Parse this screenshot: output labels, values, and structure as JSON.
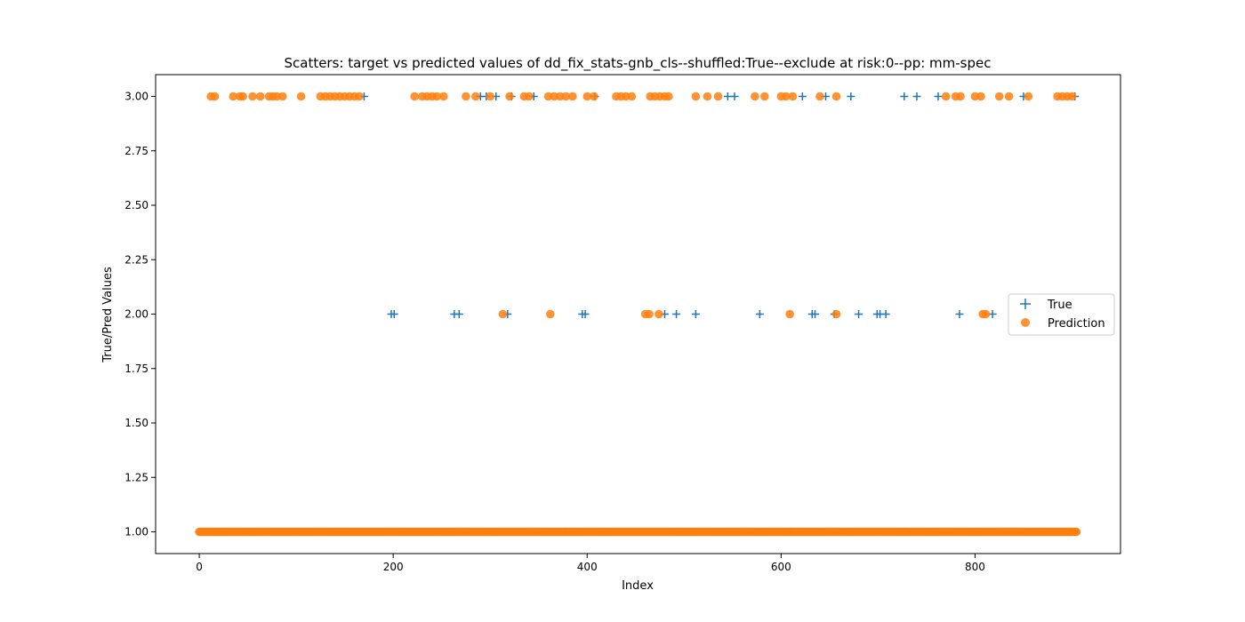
{
  "chart_data": {
    "type": "scatter",
    "title": "Scatters: target vs predicted values of dd_fix_stats-gnb_cls--shuffled:True--exclude at risk:0--pp: mm-spec",
    "xlabel": "Index",
    "ylabel": "True/Pred Values",
    "xlim": [
      -45,
      950
    ],
    "ylim": [
      0.9,
      3.1
    ],
    "xticks": [
      0,
      200,
      400,
      600,
      800
    ],
    "yticks": [
      1.0,
      1.25,
      1.5,
      1.75,
      2.0,
      2.25,
      2.5,
      2.75,
      3.0
    ],
    "xtick_labels": [
      "0",
      "200",
      "400",
      "600",
      "800"
    ],
    "ytick_labels": [
      "1.00",
      "1.25",
      "1.50",
      "1.75",
      "2.00",
      "2.25",
      "2.50",
      "2.75",
      "3.00"
    ],
    "grid": false,
    "legend_position": "center-right",
    "series": [
      {
        "name": "True",
        "marker": "plus",
        "color": "#1f77b4",
        "points": [
          [
            170,
            3
          ],
          [
            290,
            3
          ],
          [
            296,
            3
          ],
          [
            306,
            3
          ],
          [
            322,
            3
          ],
          [
            345,
            3
          ],
          [
            408,
            3
          ],
          [
            545,
            3
          ],
          [
            552,
            3
          ],
          [
            622,
            3
          ],
          [
            646,
            3
          ],
          [
            672,
            3
          ],
          [
            727,
            3
          ],
          [
            740,
            3
          ],
          [
            762,
            3
          ],
          [
            850,
            3
          ],
          [
            903,
            3
          ],
          [
            198,
            2
          ],
          [
            201,
            2
          ],
          [
            263,
            2
          ],
          [
            268,
            2
          ],
          [
            318,
            2
          ],
          [
            395,
            2
          ],
          [
            398,
            2
          ],
          [
            480,
            2
          ],
          [
            492,
            2
          ],
          [
            512,
            2
          ],
          [
            578,
            2
          ],
          [
            632,
            2
          ],
          [
            635,
            2
          ],
          [
            655,
            2
          ],
          [
            680,
            2
          ],
          [
            699,
            2
          ],
          [
            702,
            2
          ],
          [
            708,
            2
          ],
          [
            784,
            2
          ],
          [
            818,
            2
          ]
        ],
        "baseline": {
          "x_start": 0,
          "x_end": 905,
          "y": 1
        }
      },
      {
        "name": "Prediction",
        "marker": "circle",
        "color": "#ff7f0e",
        "points": [
          [
            12,
            3
          ],
          [
            16,
            3
          ],
          [
            35,
            3
          ],
          [
            42,
            3
          ],
          [
            45,
            3
          ],
          [
            55,
            3
          ],
          [
            63,
            3
          ],
          [
            72,
            3
          ],
          [
            76,
            3
          ],
          [
            80,
            3
          ],
          [
            86,
            3
          ],
          [
            105,
            3
          ],
          [
            125,
            3
          ],
          [
            130,
            3
          ],
          [
            135,
            3
          ],
          [
            140,
            3
          ],
          [
            145,
            3
          ],
          [
            150,
            3
          ],
          [
            155,
            3
          ],
          [
            160,
            3
          ],
          [
            165,
            3
          ],
          [
            222,
            3
          ],
          [
            230,
            3
          ],
          [
            235,
            3
          ],
          [
            240,
            3
          ],
          [
            245,
            3
          ],
          [
            252,
            3
          ],
          [
            275,
            3
          ],
          [
            285,
            3
          ],
          [
            300,
            3
          ],
          [
            320,
            3
          ],
          [
            335,
            3
          ],
          [
            340,
            3
          ],
          [
            360,
            3
          ],
          [
            366,
            3
          ],
          [
            372,
            3
          ],
          [
            378,
            3
          ],
          [
            385,
            3
          ],
          [
            400,
            3
          ],
          [
            407,
            3
          ],
          [
            430,
            3
          ],
          [
            435,
            3
          ],
          [
            440,
            3
          ],
          [
            446,
            3
          ],
          [
            465,
            3
          ],
          [
            470,
            3
          ],
          [
            475,
            3
          ],
          [
            480,
            3
          ],
          [
            484,
            3
          ],
          [
            512,
            3
          ],
          [
            524,
            3
          ],
          [
            535,
            3
          ],
          [
            573,
            3
          ],
          [
            583,
            3
          ],
          [
            600,
            3
          ],
          [
            605,
            3
          ],
          [
            612,
            3
          ],
          [
            640,
            3
          ],
          [
            657,
            3
          ],
          [
            770,
            3
          ],
          [
            780,
            3
          ],
          [
            785,
            3
          ],
          [
            800,
            3
          ],
          [
            806,
            3
          ],
          [
            825,
            3
          ],
          [
            835,
            3
          ],
          [
            855,
            3
          ],
          [
            885,
            3
          ],
          [
            890,
            3
          ],
          [
            895,
            3
          ],
          [
            900,
            3
          ],
          [
            313,
            2
          ],
          [
            362,
            2
          ],
          [
            460,
            2
          ],
          [
            464,
            2
          ],
          [
            474,
            2
          ],
          [
            609,
            2
          ],
          [
            657,
            2
          ],
          [
            808,
            2
          ],
          [
            811,
            2
          ]
        ],
        "baseline": {
          "x_start": 0,
          "x_end": 905,
          "y": 1
        }
      }
    ]
  }
}
